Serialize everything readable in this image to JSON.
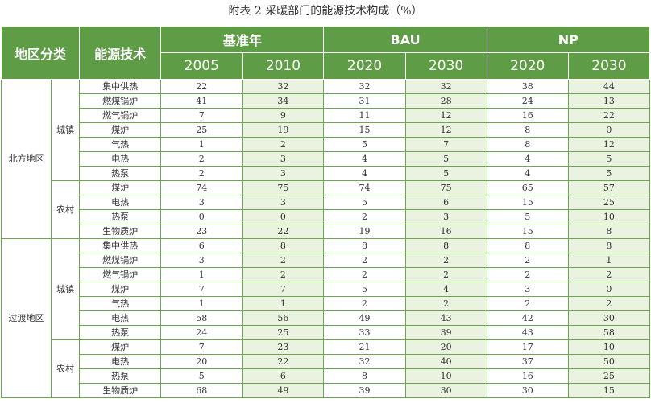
{
  "title": "附表 2 采暖部门的能源技术构成（%）",
  "header": {
    "region": "地区分类",
    "tech": "能源技术",
    "groups": [
      {
        "label": "基准年",
        "years": [
          "2005",
          "2010"
        ]
      },
      {
        "label": "BAU",
        "years": [
          "2020",
          "2030"
        ]
      },
      {
        "label": "NP",
        "years": [
          "2020",
          "2030"
        ]
      }
    ]
  },
  "regions": [
    {
      "name": "北方地区",
      "areas": [
        {
          "name": "城镇",
          "rows": [
            {
              "tech": "集中供热",
              "values": [
                22,
                32,
                32,
                32,
                38,
                44
              ]
            },
            {
              "tech": "燃煤锅炉",
              "values": [
                41,
                34,
                31,
                28,
                24,
                13
              ]
            },
            {
              "tech": "燃气锅炉",
              "values": [
                7,
                9,
                11,
                12,
                16,
                22
              ]
            },
            {
              "tech": "煤炉",
              "values": [
                25,
                19,
                15,
                12,
                8,
                0
              ]
            },
            {
              "tech": "气热",
              "values": [
                1,
                2,
                5,
                7,
                8,
                12
              ]
            },
            {
              "tech": "电热",
              "values": [
                2,
                3,
                4,
                5,
                4,
                5
              ]
            },
            {
              "tech": "热泵",
              "values": [
                2,
                3,
                4,
                5,
                4,
                5
              ]
            }
          ]
        },
        {
          "name": "农村",
          "rows": [
            {
              "tech": "煤炉",
              "values": [
                74,
                75,
                74,
                75,
                65,
                57
              ]
            },
            {
              "tech": "电热",
              "values": [
                3,
                3,
                5,
                6,
                15,
                25
              ]
            },
            {
              "tech": "热泵",
              "values": [
                0,
                0,
                2,
                3,
                5,
                10
              ]
            },
            {
              "tech": "生物质炉",
              "values": [
                23,
                22,
                19,
                16,
                15,
                8
              ]
            }
          ]
        }
      ]
    },
    {
      "name": "过渡地区",
      "areas": [
        {
          "name": "城镇",
          "rows": [
            {
              "tech": "集中供热",
              "values": [
                6,
                8,
                8,
                8,
                8,
                8
              ]
            },
            {
              "tech": "燃煤锅炉",
              "values": [
                3,
                2,
                2,
                2,
                2,
                1
              ]
            },
            {
              "tech": "燃气锅炉",
              "values": [
                1,
                2,
                2,
                2,
                2,
                2
              ]
            },
            {
              "tech": "煤炉",
              "values": [
                7,
                7,
                5,
                4,
                3,
                0
              ]
            },
            {
              "tech": "气热",
              "values": [
                1,
                1,
                2,
                2,
                2,
                2
              ]
            },
            {
              "tech": "电热",
              "values": [
                58,
                56,
                49,
                43,
                42,
                30
              ]
            },
            {
              "tech": "热泵",
              "values": [
                24,
                25,
                33,
                39,
                43,
                58
              ]
            }
          ]
        },
        {
          "name": "农村",
          "rows": [
            {
              "tech": "煤炉",
              "values": [
                7,
                23,
                21,
                20,
                17,
                10
              ]
            },
            {
              "tech": "电热",
              "values": [
                20,
                22,
                32,
                40,
                37,
                50
              ]
            },
            {
              "tech": "热泵",
              "values": [
                5,
                6,
                8,
                10,
                16,
                25
              ]
            },
            {
              "tech": "生物质炉",
              "values": [
                68,
                49,
                39,
                30,
                30,
                15
              ]
            }
          ]
        }
      ]
    }
  ]
}
